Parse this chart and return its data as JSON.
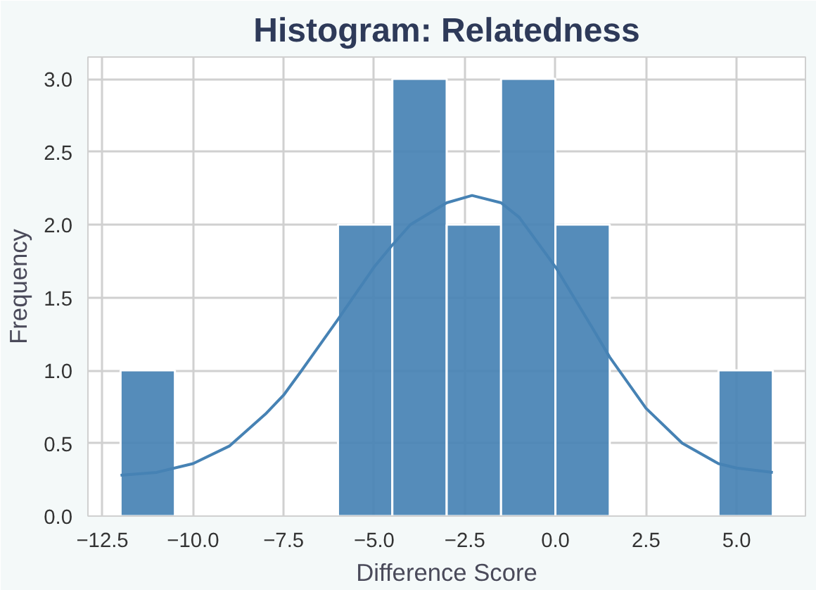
{
  "chart_data": {
    "type": "histogram",
    "title": "Histogram: Relatedness",
    "xlabel": "Difference Score",
    "ylabel": "Frequency",
    "bins": [
      -12,
      -10.5,
      -9,
      -7.5,
      -6,
      -4.5,
      -3,
      -1.5,
      0,
      1.5,
      3,
      4.5,
      6
    ],
    "values": [
      1,
      0,
      0,
      0,
      2,
      3,
      2,
      3,
      2,
      0,
      0,
      1
    ],
    "color": "#4682b4",
    "series": [
      {
        "type": "line",
        "color": "#4682b4",
        "x": [
          -12,
          -11,
          -10,
          -9,
          -8,
          -7.5,
          -7,
          -6,
          -5,
          -4.5,
          -4,
          -3,
          -2.3,
          -1.5,
          -1,
          0,
          1,
          1.5,
          2.5,
          3.5,
          4.5,
          5,
          6
        ],
        "values": [
          0.28,
          0.3,
          0.36,
          0.48,
          0.7,
          0.83,
          1.0,
          1.35,
          1.71,
          1.86,
          2.0,
          2.15,
          2.2,
          2.15,
          2.05,
          1.71,
          1.3,
          1.09,
          0.74,
          0.5,
          0.36,
          0.33,
          0.3
        ]
      }
    ],
    "xlim": [
      -12.9,
      6.9
    ],
    "ylim": [
      0,
      3.15
    ],
    "xticks": [
      {
        "value": -12.5,
        "label": "−12.5"
      },
      {
        "value": -10,
        "label": "−10.0"
      },
      {
        "value": -7.5,
        "label": "−7.5"
      },
      {
        "value": -5,
        "label": "−5.0"
      },
      {
        "value": -2.5,
        "label": "−2.5"
      },
      {
        "value": 0,
        "label": "0.0"
      },
      {
        "value": 2.5,
        "label": "2.5"
      },
      {
        "value": 5,
        "label": "5.0"
      }
    ],
    "yticks": [
      {
        "value": 0,
        "label": "0.0"
      },
      {
        "value": 0.5,
        "label": "0.5"
      },
      {
        "value": 1,
        "label": "1.0"
      },
      {
        "value": 1.5,
        "label": "1.5"
      },
      {
        "value": 2,
        "label": "2.0"
      },
      {
        "value": 2.5,
        "label": "2.5"
      },
      {
        "value": 3,
        "label": "3.0"
      }
    ],
    "grid": true
  }
}
